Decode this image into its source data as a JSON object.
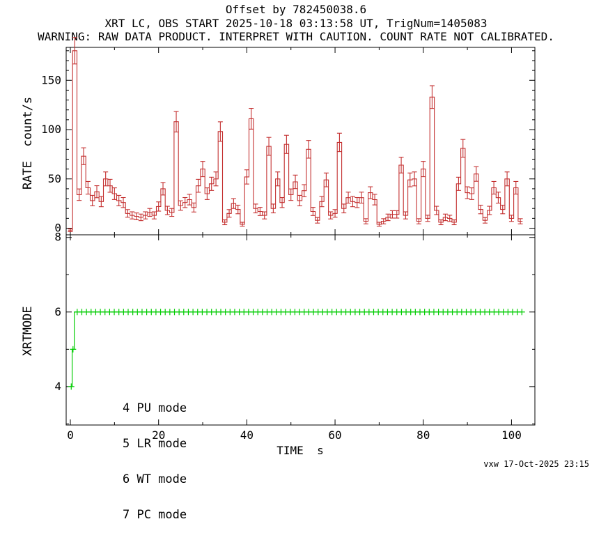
{
  "header": {
    "title": "Offset by 782450038.6",
    "subtitle": "XRT LC, OBS START 2025-10-18 03:13:58 UT, TrigNum=1405083",
    "warning": "WARNING: RAW DATA PRODUCT. INTERPRET WITH CAUTION. COUNT RATE NOT CALIBRATED."
  },
  "footer": {
    "stamp": "vxw 17-Oct-2025 23:15"
  },
  "colors": {
    "rate_series": "#c43030",
    "mode_series": "#00cc00",
    "axis": "#000000",
    "background": "#ffffff"
  },
  "chart_data": [
    {
      "type": "line",
      "style": "step-histogram-with-error-bars",
      "title": "",
      "xlabel": "",
      "ylabel": "RATE  count/s",
      "x_start": 0,
      "x_step": 1,
      "values": [
        -2,
        180,
        34,
        73,
        41,
        28,
        37,
        27,
        50,
        43,
        35,
        28,
        26,
        15,
        13,
        12,
        11,
        13,
        16,
        13,
        22,
        40,
        18,
        16,
        108,
        23,
        26,
        29,
        21,
        43,
        60,
        35,
        45,
        50,
        98,
        6,
        15,
        25,
        19,
        4,
        52,
        111,
        20,
        17,
        13,
        83,
        20,
        50,
        26,
        85,
        34,
        47,
        28,
        38,
        80,
        17,
        8,
        27,
        49,
        13,
        15,
        87,
        20,
        31,
        27,
        26,
        31,
        7,
        36,
        29,
        4,
        7,
        11,
        14,
        14,
        64,
        13,
        49,
        50,
        7,
        60,
        10,
        133,
        18,
        6,
        11,
        10,
        6,
        45,
        81,
        36,
        35,
        55,
        19,
        8,
        18,
        41,
        31,
        19,
        50,
        10,
        41,
        7
      ],
      "error_model": "sqrt",
      "xlim": [
        -0.95,
        105.3
      ],
      "ylim": [
        -6.7,
        183.4
      ],
      "xticks": [
        0,
        20,
        40,
        60,
        80,
        100
      ],
      "xtick_minor_step": 10,
      "yticks": [
        0,
        50,
        100,
        150
      ],
      "ytick_minor_step": 10,
      "grid": false
    },
    {
      "type": "line",
      "style": "step-line-with-plus-markers",
      "title": "",
      "xlabel": "TIME  s",
      "ylabel": "XRTMODE",
      "points": [
        {
          "t": 0.2,
          "mode": 4
        },
        {
          "t": 0.6,
          "mode": 5
        }
      ],
      "plateau": {
        "mode": 6,
        "t_start": 1.2,
        "t_end": 102.4,
        "marker_start": 1.55,
        "marker_step": 1.05
      },
      "xlim": [
        -0.95,
        105.3
      ],
      "ylim": [
        2.97,
        8.07
      ],
      "xticks": [
        0,
        20,
        40,
        60,
        80,
        100
      ],
      "xtick_minor_step": 10,
      "yticks": [
        4,
        6,
        8
      ],
      "ytick_minor_step": 1,
      "legend": [
        "4 PU mode",
        "5 LR mode",
        "6 WT mode",
        "7 PC mode"
      ],
      "legend_position": "inside-bottom-left",
      "grid": false
    }
  ]
}
